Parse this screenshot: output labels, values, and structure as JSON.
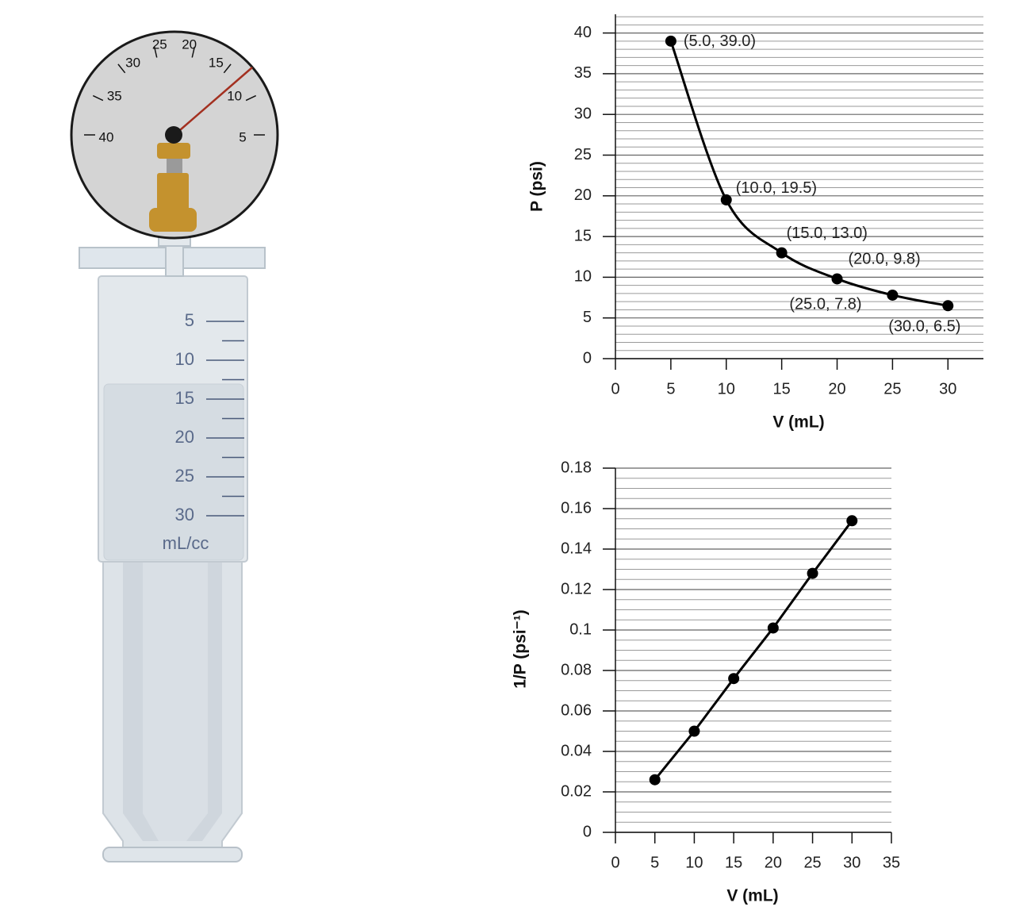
{
  "chart_data": [
    {
      "type": "line",
      "smooth": true,
      "x_label": "V (mL)",
      "y_label": "P (psi)",
      "x": [
        5,
        10,
        15,
        20,
        25,
        30
      ],
      "values": [
        39.0,
        19.5,
        13.0,
        9.8,
        7.8,
        6.5
      ],
      "value_labels": [
        "(5.0, 39.0)",
        "(10.0, 19.5)",
        "(15.0, 13.0)",
        "(20.0, 9.8)",
        "(25.0, 7.8)",
        "(30.0, 6.5)"
      ],
      "color": "#000000",
      "xlim": [
        0,
        33.2
      ],
      "ylim": [
        0,
        42.3
      ],
      "xticks": [
        0,
        5,
        10,
        15,
        20,
        25,
        30
      ],
      "yticks": [
        0,
        5,
        10,
        15,
        20,
        25,
        30,
        35,
        40
      ],
      "grid": true
    },
    {
      "type": "line",
      "smooth": false,
      "x_label": "V (mL)",
      "y_label": "1/P (psi⁻¹)",
      "x": [
        5,
        10,
        15,
        20,
        25,
        30
      ],
      "values": [
        0.026,
        0.05,
        0.076,
        0.101,
        0.128,
        0.154
      ],
      "color": "#000000",
      "xlim": [
        0,
        35
      ],
      "ylim": [
        0,
        0.18
      ],
      "xticks": [
        0,
        5,
        10,
        15,
        20,
        25,
        30,
        35
      ],
      "yticks": [
        0,
        0.02,
        0.04,
        0.06,
        0.08,
        0.1,
        0.12,
        0.14,
        0.16,
        0.18
      ],
      "grid": true
    }
  ],
  "illustration": {
    "gauge_labels": [
      "40",
      "35",
      "30",
      "25",
      "20",
      "15",
      "10",
      "5"
    ],
    "syringe_labels": [
      "5",
      "10",
      "15",
      "20",
      "25",
      "30"
    ],
    "syringe_unit": "mL/cc"
  }
}
